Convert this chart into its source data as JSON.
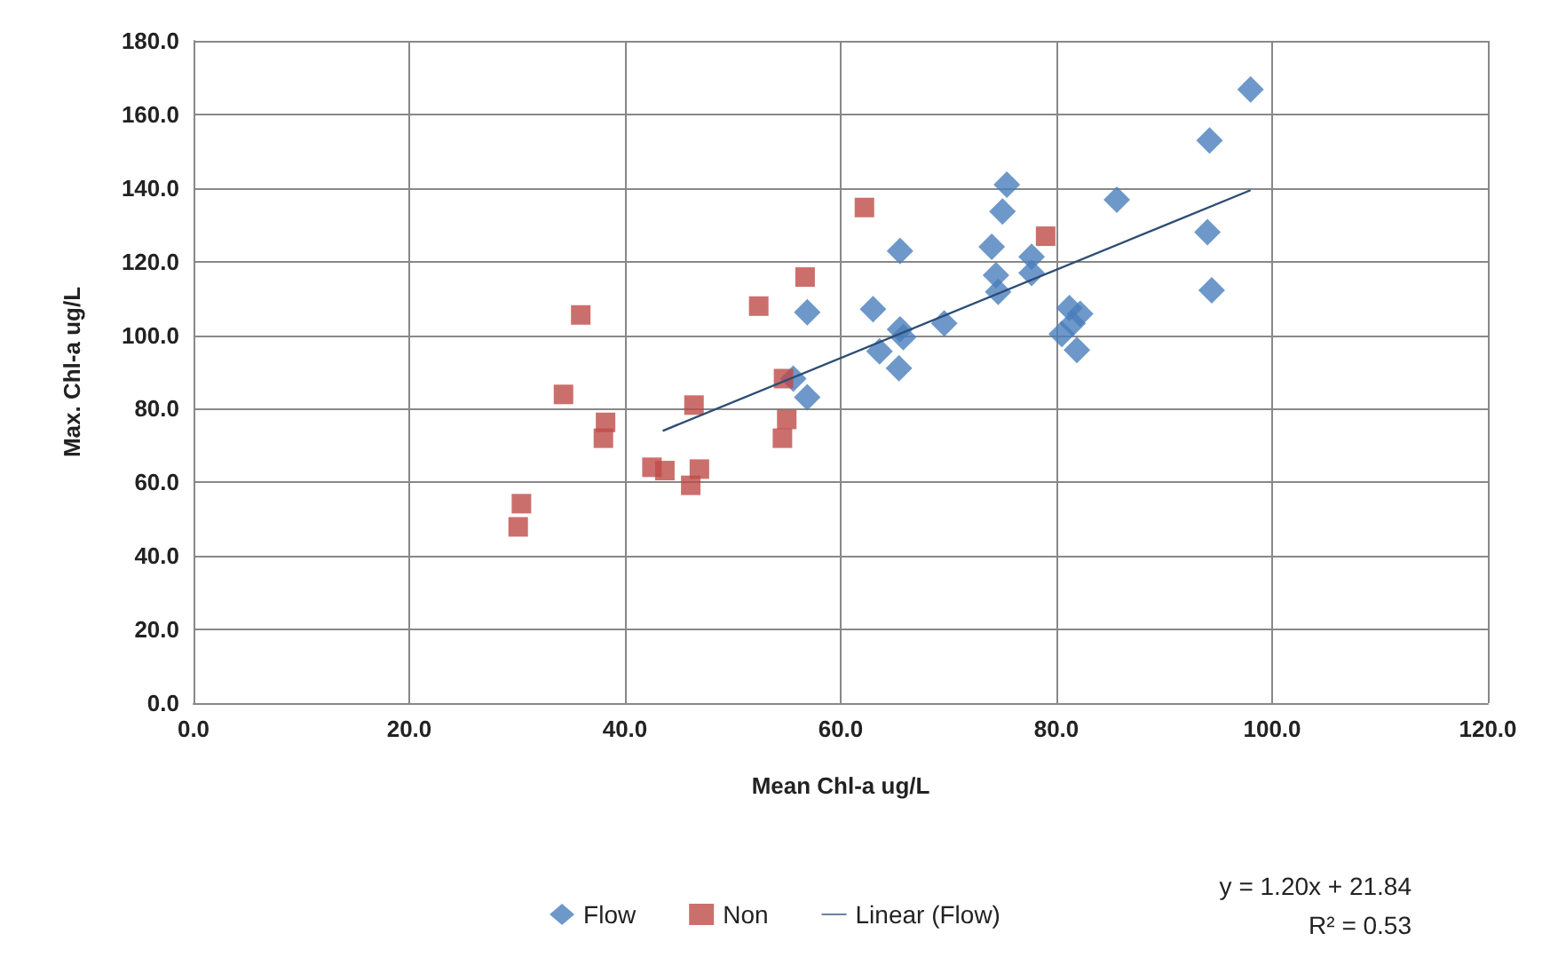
{
  "chart_data": {
    "type": "scatter",
    "xlabel": "Mean Chl-a ug/L",
    "ylabel": "Max. Chl-a ug/L",
    "xlim": [
      0,
      120
    ],
    "xticks": [
      {
        "value": 0,
        "label": "0.0"
      },
      {
        "value": 20,
        "label": "20.0"
      },
      {
        "value": 40,
        "label": "40.0"
      },
      {
        "value": 60,
        "label": "60.0"
      },
      {
        "value": 80,
        "label": "80.0"
      },
      {
        "value": 100,
        "label": "100.0"
      },
      {
        "value": 120,
        "label": "120.0"
      }
    ],
    "ylim": [
      0,
      180
    ],
    "yticks": [
      {
        "value": 0,
        "label": "0.0"
      },
      {
        "value": 20,
        "label": "20.0"
      },
      {
        "value": 40,
        "label": "40.0"
      },
      {
        "value": 60,
        "label": "60.0"
      },
      {
        "value": 80,
        "label": "80.0"
      },
      {
        "value": 100,
        "label": "100.0"
      },
      {
        "value": 120,
        "label": "120.0"
      },
      {
        "value": 140,
        "label": "140.0"
      },
      {
        "value": 160,
        "label": "160.0"
      },
      {
        "value": 180,
        "label": "180.0"
      }
    ],
    "grid": true,
    "legend": "bottom",
    "series": [
      {
        "name": "Flow",
        "color": "#4a7ebb",
        "marker": "diamond",
        "x": [
          98.0,
          94.2,
          94.0,
          94.4,
          85.6,
          75.4,
          75.0,
          74.0,
          74.4,
          74.6,
          77.7,
          77.7,
          81.2,
          82.2,
          81.5,
          80.5,
          81.9,
          65.5,
          63.0,
          65.5,
          65.8,
          69.6,
          63.6,
          65.4,
          56.9,
          55.6,
          56.9
        ],
        "values": [
          166.8,
          152.9,
          128.0,
          112.2,
          136.8,
          140.9,
          133.6,
          124.0,
          116.3,
          111.8,
          121.3,
          116.9,
          107.4,
          105.8,
          103.2,
          100.3,
          96.0,
          122.9,
          107.1,
          101.6,
          99.5,
          103.2,
          95.6,
          91.0,
          106.2,
          88.2,
          83.1
        ]
      },
      {
        "name": "Non",
        "color": "#be4b48",
        "marker": "square",
        "x": [
          62.2,
          79.0,
          56.7,
          52.4,
          35.9,
          34.3,
          38.2,
          38.0,
          46.4,
          54.7,
          55.0,
          54.6,
          42.5,
          43.7,
          46.9,
          46.1,
          30.4,
          30.1
        ],
        "values": [
          134.7,
          126.9,
          115.8,
          107.9,
          105.5,
          83.9,
          76.3,
          72.0,
          81.0,
          88.2,
          77.1,
          72.0,
          64.1,
          63.2,
          63.6,
          59.2,
          54.2,
          47.9
        ]
      },
      {
        "name": "Linear (Flow)",
        "type": "line",
        "color": "#2c4d75",
        "marker": "none",
        "line_style": "solid",
        "x": [
          43.5,
          98.0
        ],
        "values": [
          74.0,
          139.4
        ]
      }
    ],
    "annotations": [
      "y = 1.20x + 21.84",
      "R² = 0.53"
    ]
  }
}
